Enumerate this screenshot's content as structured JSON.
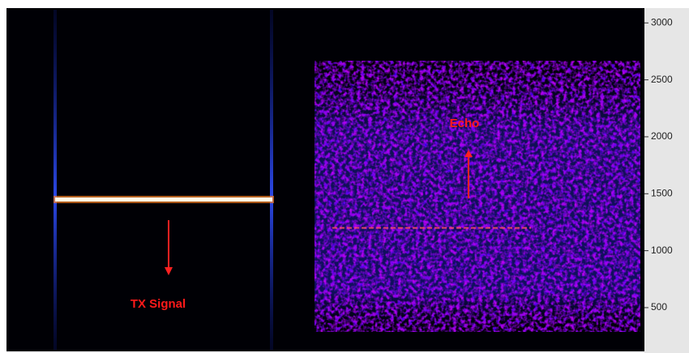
{
  "chart_data": {
    "type": "spectrogram",
    "ylim": [
      130,
      3130
    ],
    "yticks": [
      500,
      1000,
      1500,
      2000,
      2500,
      3000
    ],
    "annotations": [
      {
        "text": "TX Signal",
        "y": 1450
      },
      {
        "text": "Echo",
        "y": 1200
      }
    ]
  }
}
